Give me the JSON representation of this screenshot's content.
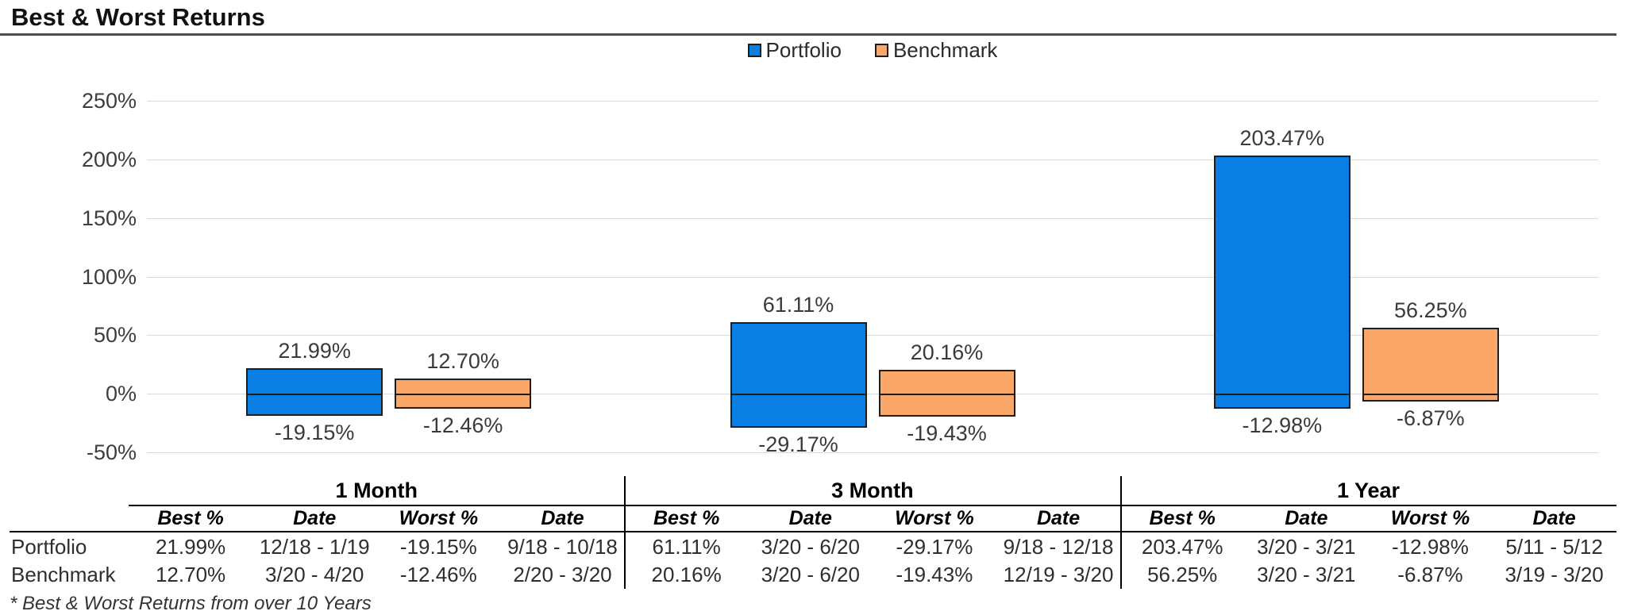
{
  "page": {
    "title": "Best & Worst Returns",
    "footnote": "* Best & Worst Returns from over 10 Years"
  },
  "legend": [
    {
      "label": "Portfolio",
      "color": "#0A7FE3"
    },
    {
      "label": "Benchmark",
      "color": "#FCA76A"
    }
  ],
  "chart_data": {
    "type": "bar",
    "subtype": "floating-range (best-to-worst)",
    "title": "Best & Worst Returns",
    "categories": [
      "1 Month",
      "3 Month",
      "1 Year"
    ],
    "series": [
      {
        "name": "Portfolio",
        "color": "#0A7FE3",
        "best": [
          21.99,
          61.11,
          203.47
        ],
        "worst": [
          -19.15,
          -29.17,
          -12.98
        ]
      },
      {
        "name": "Benchmark",
        "color": "#FCA76A",
        "best": [
          12.7,
          20.16,
          56.25
        ],
        "worst": [
          -12.46,
          -19.43,
          -6.87
        ]
      }
    ],
    "ylim": [
      -50,
      250
    ],
    "yticks": [
      "250%",
      "200%",
      "150%",
      "100%",
      "50%",
      "0%",
      "-50%"
    ],
    "grid": true,
    "gridline_color": "#d9d9d9",
    "bar_border_color": "#1e1e1e",
    "legend_position": "top-center",
    "data_label_format": "0.00%"
  },
  "table": {
    "groups": [
      "1 Month",
      "3 Month",
      "1 Year"
    ],
    "columns": [
      "Best %",
      "Date",
      "Worst %",
      "Date"
    ],
    "rows": [
      {
        "label": "Portfolio",
        "cells": [
          [
            "21.99%",
            "12/18 - 1/19",
            "-19.15%",
            "9/18 - 10/18"
          ],
          [
            "61.11%",
            "3/20 - 6/20",
            "-29.17%",
            "9/18 - 12/18"
          ],
          [
            "203.47%",
            "3/20 - 3/21",
            "-12.98%",
            "5/11 - 5/12"
          ]
        ]
      },
      {
        "label": "Benchmark",
        "cells": [
          [
            "12.70%",
            "3/20 - 4/20",
            "-12.46%",
            "2/20 - 3/20"
          ],
          [
            "20.16%",
            "3/20 - 6/20",
            "-19.43%",
            "12/19 - 3/20"
          ],
          [
            "56.25%",
            "3/20 - 3/21",
            "-6.87%",
            "3/19 - 3/20"
          ]
        ]
      }
    ]
  }
}
